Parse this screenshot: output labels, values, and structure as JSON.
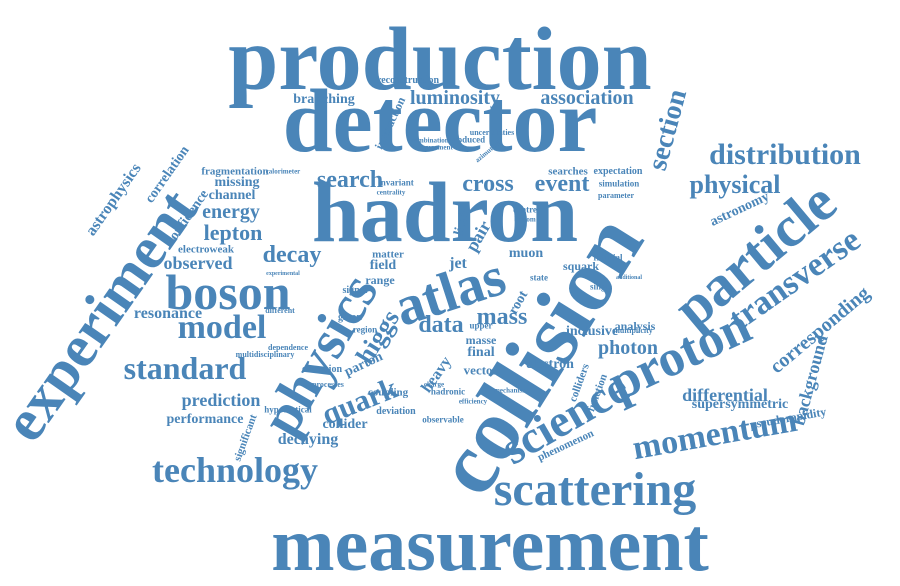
{
  "colors": {
    "word": "#4a85b8",
    "background": "#ffffff"
  },
  "words": [
    {
      "text": "production"
    },
    {
      "text": "detector"
    },
    {
      "text": "hadron"
    },
    {
      "text": "collision"
    },
    {
      "text": "measurement"
    },
    {
      "text": "experiment"
    },
    {
      "text": "particle"
    },
    {
      "text": "physics"
    },
    {
      "text": "atlas"
    },
    {
      "text": "boson"
    },
    {
      "text": "proton"
    },
    {
      "text": "scattering"
    },
    {
      "text": "science"
    },
    {
      "text": "technology"
    },
    {
      "text": "momentum"
    },
    {
      "text": "transverse"
    },
    {
      "text": "distribution"
    },
    {
      "text": "model"
    },
    {
      "text": "standard"
    },
    {
      "text": "quark"
    },
    {
      "text": "physical"
    },
    {
      "text": "section"
    },
    {
      "text": "search"
    },
    {
      "text": "cross"
    },
    {
      "text": "event"
    },
    {
      "text": "decay"
    },
    {
      "text": "higgs"
    },
    {
      "text": "data"
    },
    {
      "text": "mass"
    },
    {
      "text": "lepton"
    },
    {
      "text": "energy"
    },
    {
      "text": "luminosity"
    },
    {
      "text": "association"
    },
    {
      "text": "corresponding"
    },
    {
      "text": "differential"
    },
    {
      "text": "photon"
    },
    {
      "text": "background"
    },
    {
      "text": "prediction"
    },
    {
      "text": "resonance"
    },
    {
      "text": "observed"
    },
    {
      "text": "branching"
    },
    {
      "text": "channel"
    },
    {
      "text": "missing"
    },
    {
      "text": "supersymmetric"
    },
    {
      "text": "decaying"
    },
    {
      "text": "performance"
    },
    {
      "text": "collider"
    },
    {
      "text": "astrophysics"
    },
    {
      "text": "correlation"
    },
    {
      "text": "confidence"
    },
    {
      "text": "fragmentation"
    },
    {
      "text": "astronomy"
    },
    {
      "text": "interaction"
    },
    {
      "text": "electron"
    },
    {
      "text": "inclusive"
    },
    {
      "text": "analysis"
    },
    {
      "text": "pseudorapidity"
    },
    {
      "text": "function"
    },
    {
      "text": "colliders"
    },
    {
      "text": "phenomenon"
    },
    {
      "text": "electroweak"
    },
    {
      "text": "jet"
    },
    {
      "text": "field"
    },
    {
      "text": "matter"
    },
    {
      "text": "heavy"
    },
    {
      "text": "final"
    },
    {
      "text": "vector"
    },
    {
      "text": "parton"
    },
    {
      "text": "squark"
    },
    {
      "text": "muon"
    },
    {
      "text": "pair"
    },
    {
      "text": "limit"
    },
    {
      "text": "range"
    },
    {
      "text": "signal"
    },
    {
      "text": "gluon"
    },
    {
      "text": "root"
    },
    {
      "text": "coupling"
    },
    {
      "text": "extension"
    },
    {
      "text": "significant"
    },
    {
      "text": "hypothetical"
    },
    {
      "text": "deviation"
    },
    {
      "text": "hadronic"
    },
    {
      "text": "observable"
    },
    {
      "text": "produced"
    },
    {
      "text": "uncertainties"
    },
    {
      "text": "reconstruction"
    },
    {
      "text": "expectation"
    },
    {
      "text": "simulation"
    },
    {
      "text": "parameter"
    },
    {
      "text": "searches"
    },
    {
      "text": "calorimeter"
    },
    {
      "text": "centre"
    },
    {
      "text": "invariant"
    },
    {
      "text": "different"
    },
    {
      "text": "multidisciplinary"
    },
    {
      "text": "dependence"
    },
    {
      "text": "multiplicity"
    },
    {
      "text": "fiducial"
    },
    {
      "text": "single"
    },
    {
      "text": "masse"
    },
    {
      "text": "upper"
    },
    {
      "text": "state"
    },
    {
      "text": "region"
    },
    {
      "text": "agreement"
    },
    {
      "text": "additional"
    },
    {
      "text": "experimental"
    },
    {
      "text": "bottom"
    },
    {
      "text": "centrality"
    },
    {
      "text": "processes"
    },
    {
      "text": "efficiency"
    },
    {
      "text": "combination"
    },
    {
      "text": "azimuthal"
    },
    {
      "text": "mechanism"
    },
    {
      "text": "charge"
    }
  ]
}
